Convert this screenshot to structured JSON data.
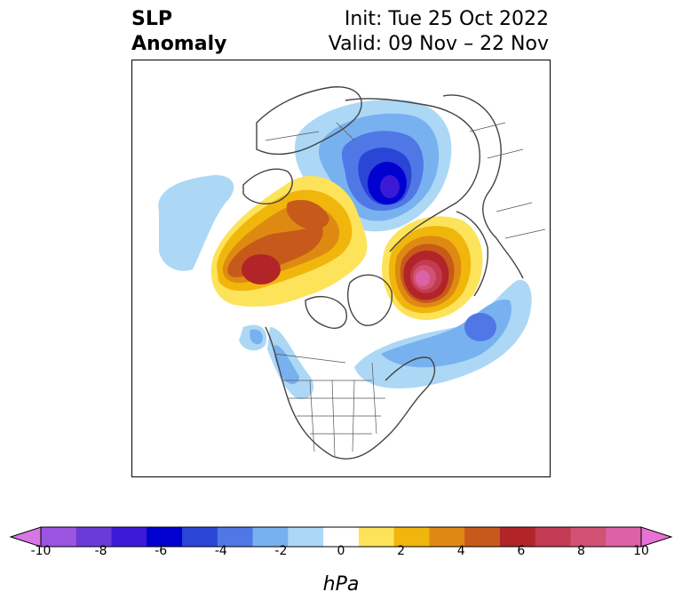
{
  "header": {
    "title_line1": "SLP",
    "title_line2": "Anomaly",
    "init": "Init: Tue 25 Oct 2022",
    "valid": "Valid: 09 Nov – 22 Nov"
  },
  "colorbar": {
    "unit": "hPa",
    "tick_labels": [
      "-10",
      "-8",
      "-6",
      "-4",
      "-2",
      "0",
      "2",
      "4",
      "6",
      "8",
      "10"
    ],
    "bin_colors": [
      "#d876e6",
      "#9b55e0",
      "#6a3bd6",
      "#3a1ad6",
      "#0000d0",
      "#2b45d6",
      "#4f78e6",
      "#78b1f0",
      "#acd8f6",
      "#ffffff",
      "#fde35a",
      "#f1b60c",
      "#de8a12",
      "#c75a1b",
      "#b12428",
      "#c23b52",
      "#d15273",
      "#dc62a5",
      "#e672d8"
    ]
  }
}
